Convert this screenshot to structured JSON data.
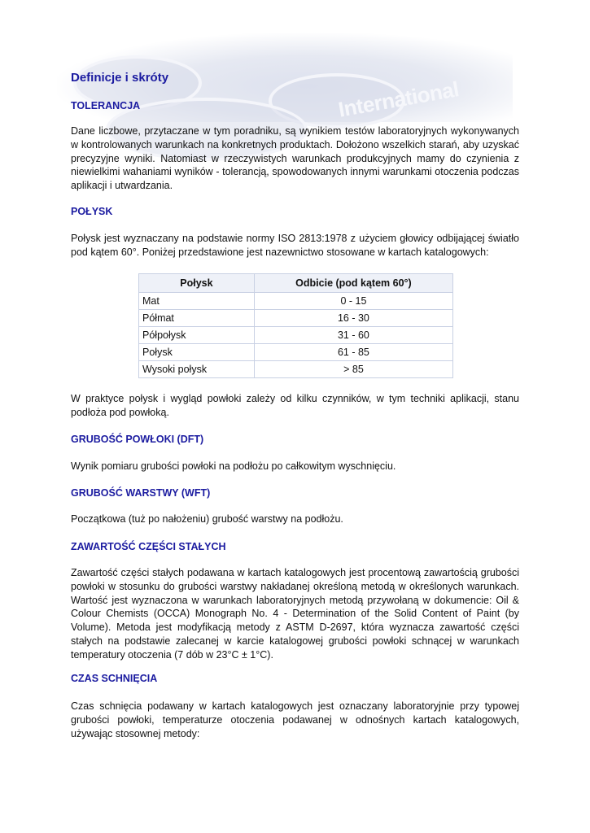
{
  "header": {
    "logo_text": "International"
  },
  "title": "Definicje i skróty",
  "sections": [
    {
      "heading": "TOLERANCJA",
      "text": "Dane liczbowe, przytaczane w tym poradniku, są wynikiem testów laboratoryjnych wykonywanych w kontrolowanych warunkach na konkretnych produktach. Dołożono wszelkich starań, aby uzyskać precyzyjne wyniki. Natomiast w rzeczywistych warunkach produkcyjnych mamy do czynienia z niewielkimi wahaniami wyników - tolerancją, spowodowanych innymi warunkami otoczenia podczas aplikacji i utwardzania."
    },
    {
      "heading": "POŁYSK",
      "text": "Połysk jest wyznaczany na podstawie normy ISO 2813:1978 z użyciem głowicy odbijającej światło pod kątem 60°. Poniżej przedstawione jest nazewnictwo stosowane w kartach katalogowych:",
      "after": "W praktyce połysk i wygląd powłoki zależy od kilku czynników, w tym techniki aplikacji, stanu podłoża pod powłoką."
    },
    {
      "heading": "GRUBOŚĆ POWŁOKI (DFT)",
      "text": "Wynik pomiaru grubości powłoki na podłożu po całkowitym wyschnięciu."
    },
    {
      "heading": "GRUBOŚĆ WARSTWY (WFT)",
      "text": "Początkowa (tuż po nałożeniu) grubość warstwy na podłożu."
    },
    {
      "heading": "ZAWARTOŚĆ CZĘŚCI STAŁYCH",
      "text": "Zawartość części stałych podawana w kartach katalogowych jest procentową zawartością grubości powłoki w stosunku do grubości warstwy nakładanej określoną metodą w określonych warunkach. Wartość jest wyznaczona w warunkach laboratoryjnych metodą przywołaną w dokumencie: Oil & Colour Chemists (OCCA) Monograph No. 4 - Determination of the Solid Content of Paint (by Volume). Metoda jest modyfikacją metody z ASTM D-2697, która wyznacza zawartość części stałych na podstawie zalecanej w karcie katalogowej grubości powłoki schnącej w warunkach temperatury otoczenia (7 dób w 23°C ± 1°C)."
    },
    {
      "heading": "CZAS SCHNIĘCIA",
      "text": "Czas schnięcia podawany w kartach katalogowych jest oznaczany laboratoryjnie przy typowej grubości powłoki, temperaturze otoczenia podawanej w odnośnych kartach katalogowych, używając stosownej metody:"
    }
  ],
  "gloss_table": {
    "headers": [
      "Połysk",
      "Odbicie (pod kątem 60°)"
    ],
    "rows": [
      [
        "Mat",
        "0 - 15"
      ],
      [
        "Półmat",
        "16 - 30"
      ],
      [
        "Półpołysk",
        "31 - 60"
      ],
      [
        "Połysk",
        "61 - 85"
      ],
      [
        "Wysoki połysk",
        "> 85"
      ]
    ]
  }
}
